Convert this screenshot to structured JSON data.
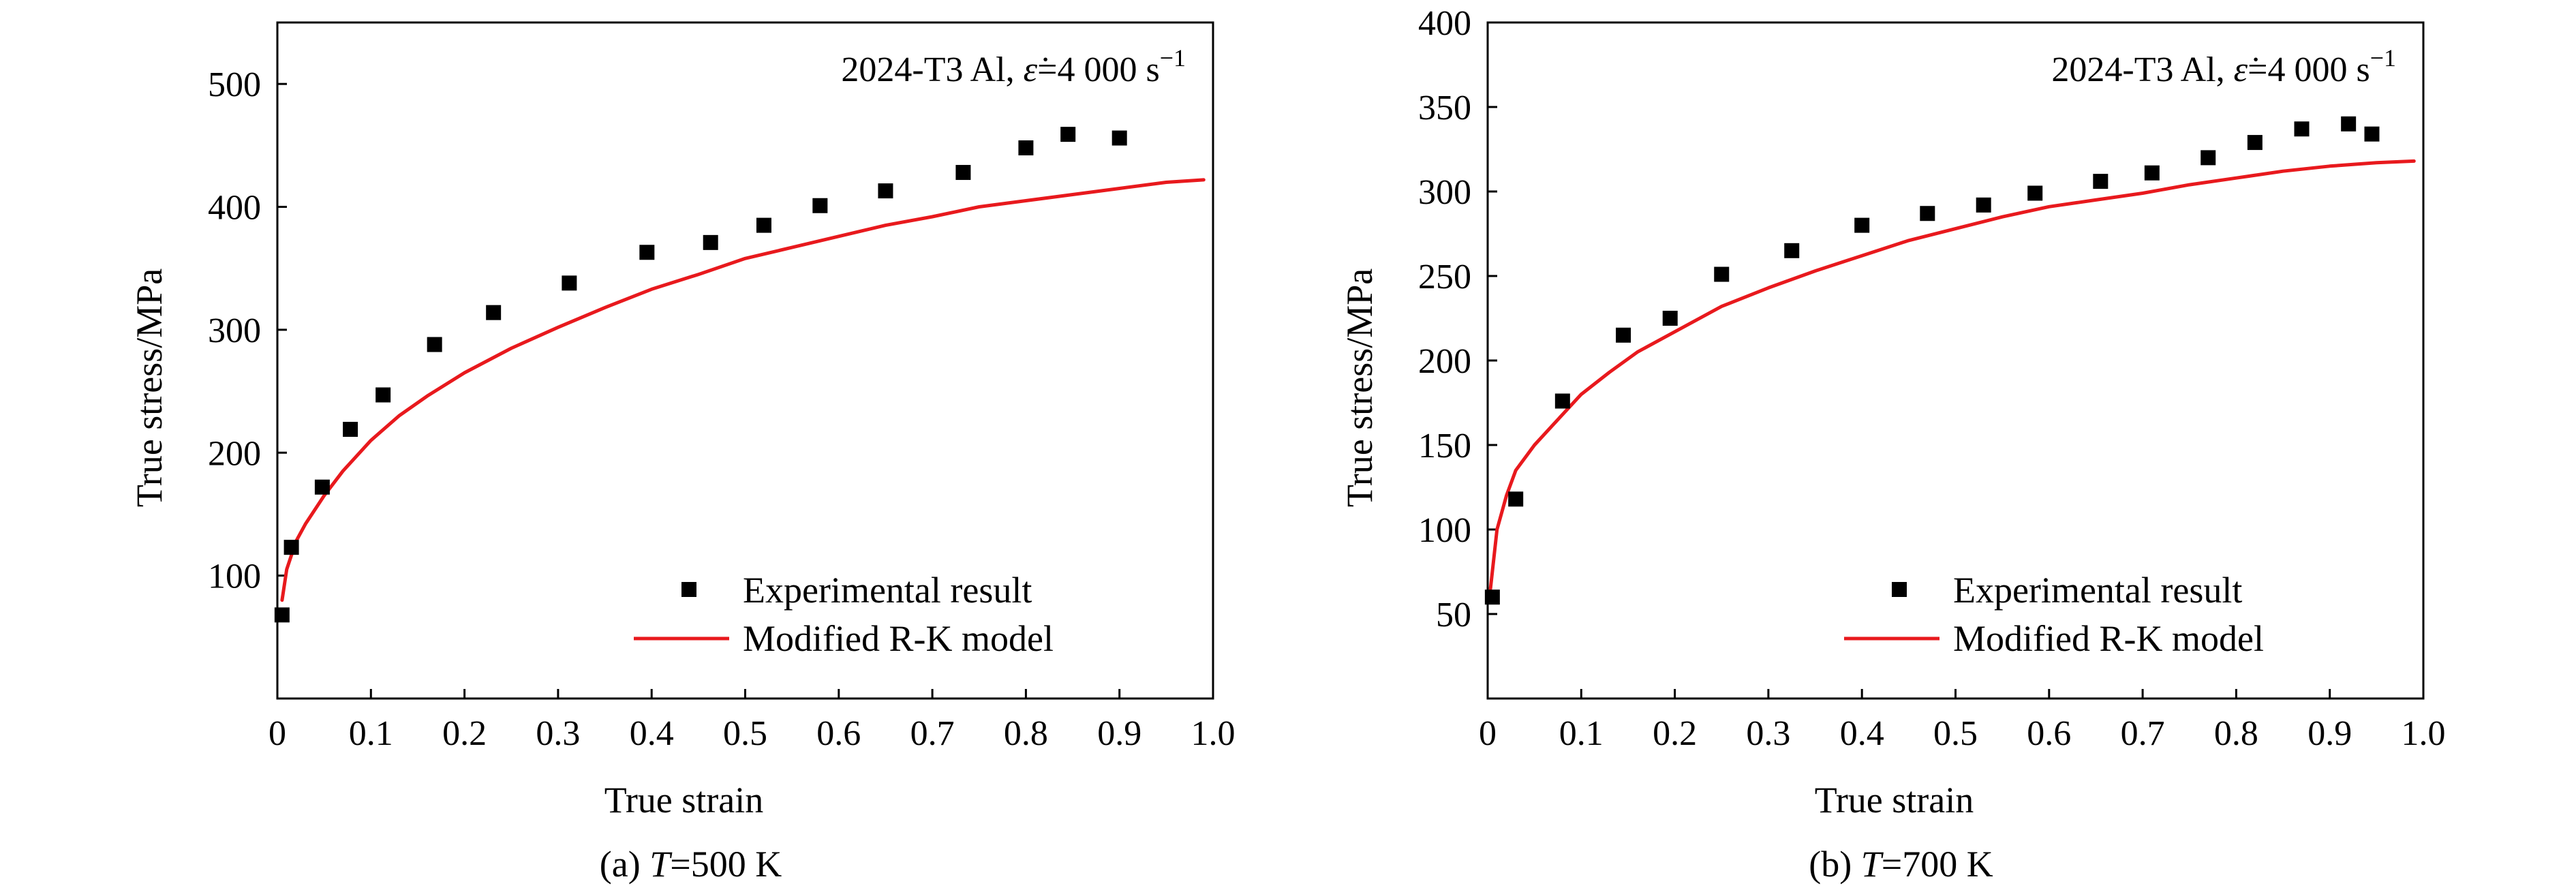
{
  "colors": {
    "experimental": "#000000",
    "model": "#e8191d",
    "axis": "#000000"
  },
  "chart_data": [
    {
      "type": "scatter",
      "caption": {
        "prefix": "(a) ",
        "symbol": "T",
        "suffix": "=500 K"
      },
      "annotation": {
        "prefix": "2024-T3 Al, ",
        "symbol": "ε̇",
        "value": "=4 000 s",
        "exponent": "−1"
      },
      "xlabel": "True strain",
      "ylabel": "True stress/MPa",
      "xlim": [
        0,
        1.0
      ],
      "ylim": [
        0,
        550
      ],
      "x_ticks": [
        0,
        0.1,
        0.2,
        0.3,
        0.4,
        0.5,
        0.6,
        0.7,
        0.8,
        0.9,
        1.0
      ],
      "x_tick_labels": [
        "0",
        "0.1",
        "0.2",
        "0.3",
        "0.4",
        "0.5",
        "0.6",
        "0.7",
        "0.8",
        "0.9",
        "1.0"
      ],
      "y_ticks": [
        100,
        200,
        300,
        400,
        500
      ],
      "y_tick_labels": [
        "100",
        "200",
        "300",
        "400",
        "500"
      ],
      "grid": false,
      "legend_position": "bottom-right",
      "series": [
        {
          "name": "Experimental result",
          "kind": "scatter",
          "x": [
            0.005,
            0.015,
            0.048,
            0.078,
            0.113,
            0.168,
            0.231,
            0.312,
            0.395,
            0.463,
            0.52,
            0.58,
            0.65,
            0.733,
            0.8,
            0.845,
            0.9
          ],
          "y": [
            68,
            123,
            172,
            219,
            247,
            288,
            314,
            338,
            363,
            371,
            385,
            401,
            413,
            428,
            448,
            459,
            456
          ]
        },
        {
          "name": "Modified R-K model",
          "kind": "line",
          "x": [
            0.005,
            0.01,
            0.02,
            0.03,
            0.05,
            0.07,
            0.1,
            0.13,
            0.16,
            0.2,
            0.25,
            0.3,
            0.35,
            0.4,
            0.45,
            0.5,
            0.55,
            0.6,
            0.65,
            0.7,
            0.75,
            0.8,
            0.85,
            0.9,
            0.95,
            0.99
          ],
          "y": [
            80,
            105,
            128,
            142,
            165,
            185,
            210,
            230,
            246,
            265,
            285,
            302,
            318,
            333,
            345,
            358,
            367,
            376,
            385,
            392,
            400,
            405,
            410,
            415,
            420,
            422
          ]
        }
      ]
    },
    {
      "type": "scatter",
      "caption": {
        "prefix": "(b) ",
        "symbol": "T",
        "suffix": "=700 K"
      },
      "annotation": {
        "prefix": "2024-T3 Al, ",
        "symbol": "ε̇",
        "value": "=4 000 s",
        "exponent": "−1"
      },
      "xlabel": "True strain",
      "ylabel": "True stress/MPa",
      "xlim": [
        0,
        1.0
      ],
      "ylim": [
        0,
        400
      ],
      "x_ticks": [
        0,
        0.1,
        0.2,
        0.3,
        0.4,
        0.5,
        0.6,
        0.7,
        0.8,
        0.9,
        1.0
      ],
      "x_tick_labels": [
        "0",
        "0.1",
        "0.2",
        "0.3",
        "0.4",
        "0.5",
        "0.6",
        "0.7",
        "0.8",
        "0.9",
        "1.0"
      ],
      "y_ticks": [
        50,
        100,
        150,
        200,
        250,
        300,
        350,
        400
      ],
      "y_tick_labels": [
        "50",
        "100",
        "150",
        "200",
        "250",
        "300",
        "350",
        "400"
      ],
      "grid": false,
      "legend_position": "bottom-right",
      "series": [
        {
          "name": "Experimental result",
          "kind": "scatter",
          "x": [
            0.005,
            0.03,
            0.08,
            0.145,
            0.195,
            0.25,
            0.325,
            0.4,
            0.47,
            0.53,
            0.585,
            0.655,
            0.71,
            0.77,
            0.82,
            0.87,
            0.92,
            0.945
          ],
          "y": [
            60,
            118,
            176,
            215,
            225,
            251,
            265,
            280,
            287,
            292,
            299,
            306,
            311,
            320,
            329,
            337,
            340,
            334
          ]
        },
        {
          "name": "Modified R-K model",
          "kind": "line",
          "x": [
            0.003,
            0.01,
            0.02,
            0.03,
            0.05,
            0.07,
            0.1,
            0.13,
            0.16,
            0.2,
            0.25,
            0.3,
            0.35,
            0.4,
            0.45,
            0.5,
            0.55,
            0.6,
            0.65,
            0.7,
            0.75,
            0.8,
            0.85,
            0.9,
            0.95,
            0.99
          ],
          "y": [
            65,
            100,
            120,
            135,
            150,
            162,
            180,
            193,
            205,
            217,
            232,
            243,
            253,
            262,
            271,
            278,
            285,
            291,
            295,
            299,
            304,
            308,
            312,
            315,
            317,
            318
          ]
        }
      ]
    }
  ]
}
